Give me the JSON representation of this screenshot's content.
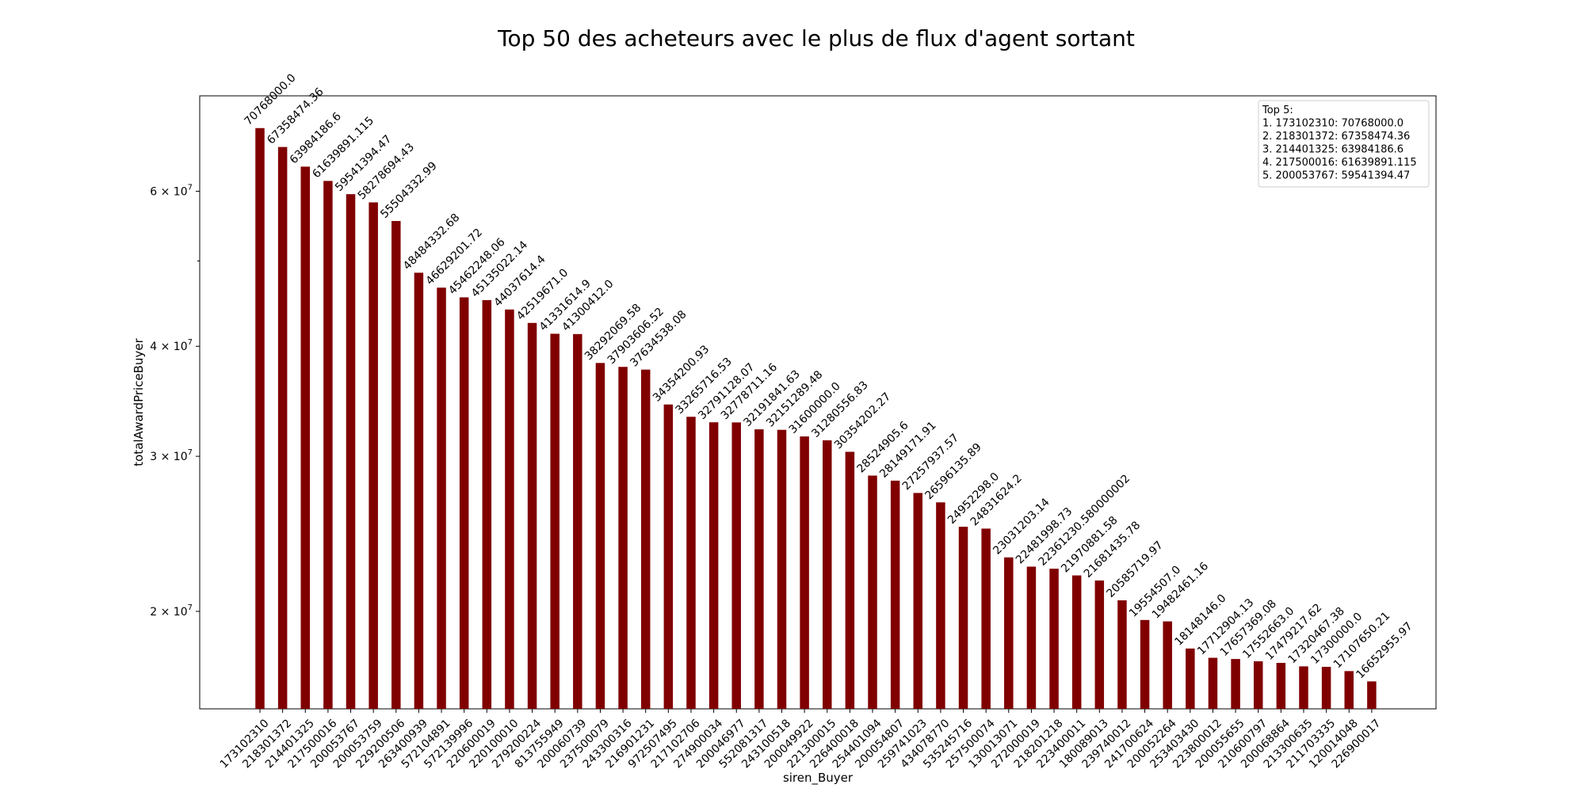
{
  "chart_data": {
    "type": "bar",
    "title": "Top 50 des acheteurs avec le plus de flux d'agent sortant",
    "xlabel": "siren_Buyer",
    "ylabel": "totalAwardPriceBuyer",
    "yscale": "log",
    "ylim": [
      15500000,
      77000000
    ],
    "yticks": [
      {
        "value": 20000000,
        "mant": "2",
        "exp": "7"
      },
      {
        "value": 30000000,
        "mant": "3",
        "exp": "7"
      },
      {
        "value": 40000000,
        "mant": "4",
        "exp": "7"
      },
      {
        "value": 60000000,
        "mant": "6",
        "exp": "7"
      }
    ],
    "yminor_ticks": [
      50000000
    ],
    "bar_color": "#800000",
    "categories": [
      "173102310",
      "218301372",
      "214401325",
      "217500016",
      "200053767",
      "200053759",
      "229200506",
      "263400939",
      "572104891",
      "572139996",
      "220600019",
      "220100010",
      "279200224",
      "813755949",
      "200060739",
      "237500079",
      "243300316",
      "216901231",
      "972507495",
      "217102706",
      "274900034",
      "200046977",
      "552081317",
      "243100518",
      "200049922",
      "221300015",
      "226400018",
      "254401094",
      "200054807",
      "259741023",
      "434078770",
      "535245716",
      "257500074",
      "130013071",
      "272000019",
      "218201218",
      "223400011",
      "180089013",
      "239740012",
      "241700624",
      "200052264",
      "253403430",
      "223800012",
      "200055655",
      "210600797",
      "200068864",
      "213300635",
      "211703335",
      "120014048",
      "226900017"
    ],
    "values": [
      70768000.0,
      67358474.36,
      63984186.6,
      61639891.115,
      59541394.47,
      58278694.43,
      55504332.99,
      48484332.68,
      46629201.72,
      45462248.06,
      45135022.14,
      44037614.4,
      42519671.0,
      41331614.9,
      41300412.0,
      38292069.58,
      37903606.52,
      37634538.08,
      34354200.93,
      33265716.53,
      32791128.07,
      32778711.16,
      32191841.63,
      32151289.48,
      31600000.0,
      31280556.83,
      30354202.27,
      28524905.6,
      28149171.91,
      27257937.57,
      26596135.89,
      24952298.0,
      24831624.2,
      23031203.14,
      22481998.73,
      22361230.580000002,
      21970881.58,
      21681435.78,
      20585719.97,
      19554507.0,
      19482461.16,
      18148146.0,
      17712904.13,
      17657369.08,
      17552663.0,
      17479217.62,
      17320467.38,
      17300000.0,
      17107650.21,
      16652955.97
    ],
    "data_labels": [
      "70768000.0",
      "67358474.36",
      "63984186.6",
      "61639891.115",
      "59541394.47",
      "58278694.43",
      "55504332.99",
      "48484332.68",
      "46629201.72",
      "45462248.06",
      "45135022.14",
      "44037614.4",
      "42519671.0",
      "41331614.9",
      "41300412.0",
      "38292069.58",
      "37903606.52",
      "37634538.08",
      "34354200.93",
      "33265716.53",
      "32791128.07",
      "32778711.16",
      "32191841.63",
      "32151289.48",
      "31600000.0",
      "31280556.83",
      "30354202.27",
      "28524905.6",
      "28149171.91",
      "27257937.57",
      "26596135.89",
      "24952298.0",
      "24831624.2",
      "23031203.14",
      "22481998.73",
      "22361230.580000002",
      "21970881.58",
      "21681435.78",
      "20585719.97",
      "19554507.0",
      "19482461.16",
      "18148146.0",
      "17712904.13",
      "17657369.08",
      "17552663.0",
      "17479217.62",
      "17320467.38",
      "17300000.0",
      "17107650.21",
      "16652955.97"
    ],
    "legend": {
      "position": "top-right",
      "lines": [
        "Top 5:",
        "1. 173102310: 70768000.0",
        "2. 218301372: 67358474.36",
        "3. 214401325: 63984186.6",
        "4. 217500016: 61639891.115",
        "5. 200053767: 59541394.47"
      ]
    }
  }
}
